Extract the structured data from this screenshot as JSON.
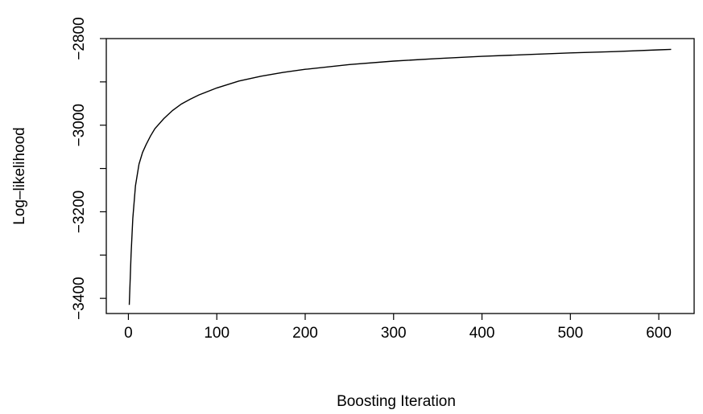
{
  "chart_data": {
    "type": "line",
    "title": "",
    "xlabel": "Boosting Iteration",
    "ylabel": "Log–likelihood",
    "xlim": [
      -25,
      640
    ],
    "ylim": [
      -3435,
      -2800
    ],
    "x_ticks": [
      0,
      100,
      200,
      300,
      400,
      500,
      600
    ],
    "x_tick_labels": [
      "0",
      "100",
      "200",
      "300",
      "400",
      "500",
      "600"
    ],
    "y_ticks": [
      -3400,
      -3200,
      -3000,
      -2800
    ],
    "y_tick_labels": [
      "−3400",
      "−3200",
      "−3000",
      "−2800"
    ],
    "y_minor_ticks": [
      -3300,
      -3100,
      -2900
    ],
    "grid": false,
    "series": [
      {
        "color": "#000000",
        "x": [
          1,
          3,
          5,
          8,
          12,
          16,
          20,
          25,
          30,
          40,
          50,
          60,
          70,
          80,
          100,
          125,
          150,
          175,
          200,
          250,
          300,
          350,
          400,
          450,
          500,
          550,
          600,
          614
        ],
        "y": [
          -3415,
          -3300,
          -3215,
          -3140,
          -3090,
          -3063,
          -3045,
          -3025,
          -3008,
          -2985,
          -2966,
          -2951,
          -2940,
          -2930,
          -2914,
          -2898,
          -2887,
          -2878,
          -2871,
          -2860,
          -2852,
          -2846,
          -2841,
          -2837,
          -2833,
          -2830,
          -2826,
          -2825
        ]
      }
    ]
  }
}
